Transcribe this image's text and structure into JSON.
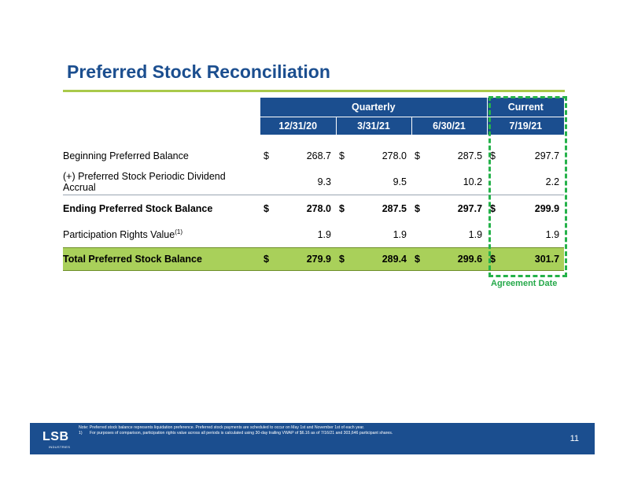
{
  "title": "Preferred Stock Reconciliation",
  "table": {
    "group_headers": {
      "quarterly": "Quarterly",
      "current": "Current"
    },
    "columns": [
      "12/31/20",
      "3/31/21",
      "6/30/21",
      "7/19/21"
    ],
    "rows": [
      {
        "label": "Beginning Preferred Balance",
        "sup": "",
        "dollar": [
          "$",
          "$",
          "$",
          "$"
        ],
        "values": [
          "268.7",
          "278.0",
          "287.5",
          "297.7"
        ]
      },
      {
        "label": "(+) Preferred Stock Periodic Dividend Accrual",
        "sup": "",
        "dollar": [
          "",
          "",
          "",
          ""
        ],
        "values": [
          "9.3",
          "9.5",
          "10.2",
          "2.2"
        ]
      },
      {
        "label": "Ending Preferred Stock Balance",
        "sup": "",
        "dollar": [
          "$",
          "$",
          "$",
          "$"
        ],
        "values": [
          "278.0",
          "287.5",
          "297.7",
          "299.9"
        ]
      },
      {
        "label": "Participation Rights Value",
        "sup": "(1)",
        "dollar": [
          "",
          "",
          "",
          ""
        ],
        "values": [
          "1.9",
          "1.9",
          "1.9",
          "1.9"
        ]
      },
      {
        "label": "Total Preferred Stock Balance",
        "sup": "",
        "dollar": [
          "$",
          "$",
          "$",
          "$"
        ],
        "values": [
          "279.9",
          "289.4",
          "299.6",
          "301.7"
        ]
      }
    ]
  },
  "agreement_label": "Agreement Date",
  "footer": {
    "logo_text": "LSB",
    "logo_subtext": "INDUSTRIES",
    "note": "Note: Preferred stock balance represents liquidation preference. Preferred stock payments are scheduled to occur on May 1st and November 1st of each year.",
    "footnote_number": "1)",
    "footnote": "For purposes of comparison, participation rights value across all periods is calculated using 30-day trailing VWAP of $6.16 as of 7/16/21 and 303,646 participant shares.",
    "page_number": "11"
  },
  "colors": {
    "navy": "#1b4e8f",
    "accent_green": "#a9c94a",
    "total_row": "#a9d05a",
    "dash_green": "#25b24a"
  }
}
